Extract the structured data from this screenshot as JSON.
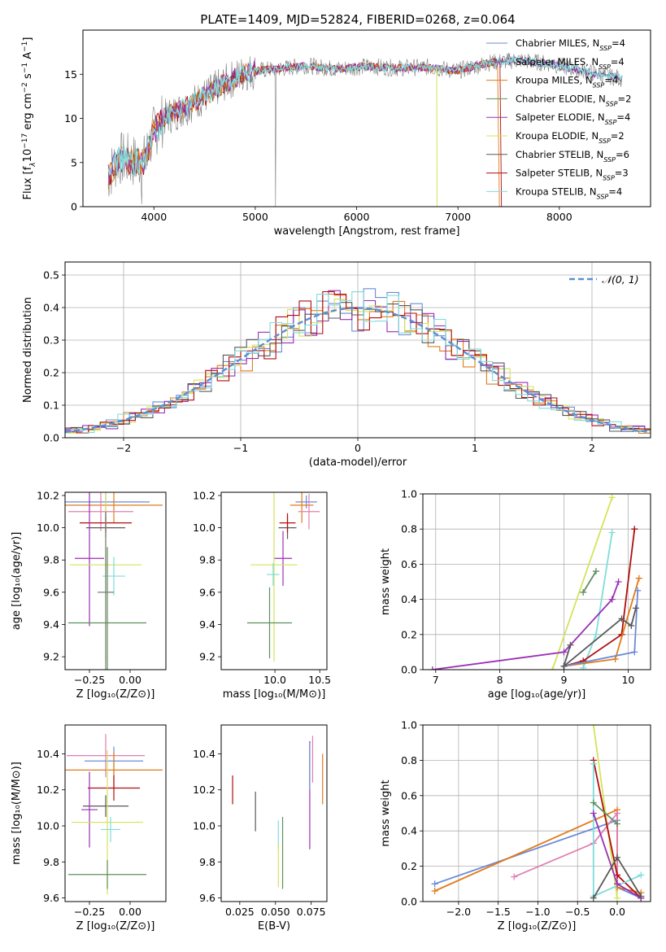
{
  "figure_title": "PLATE=1409, MJD=52824, FIBERID=0268, z=0.064",
  "series_colors": {
    "chab_miles": "#6b8ad6",
    "salp_miles": "#7b7b7b",
    "krou_miles": "#e07b1a",
    "chab_elodie": "#5f8f5f",
    "salp_elodie": "#9a2fb5",
    "krou_elodie": "#d5e35a",
    "chab_stelib": "#595959",
    "salp_stelib": "#b00d0d",
    "krou_stelib": "#7fdcdc",
    "pink": "#e07fb0"
  },
  "chart_data": [
    {
      "id": "spectrum",
      "type": "line",
      "xlabel": "wavelength [Angstrom, rest frame]",
      "ylabel_parts": [
        "Flux [f",
        "λ",
        "10",
        "−17",
        " erg cm",
        "−2",
        " s",
        "−1",
        " A",
        "−1",
        "]"
      ],
      "xlim": [
        3300,
        8900
      ],
      "ylim": [
        0,
        20
      ],
      "xticks": [
        4000,
        5000,
        6000,
        7000,
        8000
      ],
      "yticks": [
        0,
        5,
        10,
        15
      ],
      "legend_position": "upper right",
      "legend": [
        {
          "key": "chab_miles",
          "label": "Chabrier MILES, N",
          "sub": "SSP",
          "tail": "=4"
        },
        {
          "key": "salp_miles",
          "label": "Salpeter MILES, N",
          "sub": "SSP",
          "tail": "=4"
        },
        {
          "key": "krou_miles",
          "label": "Kroupa MILES, N",
          "sub": "SSP",
          "tail": "=4"
        },
        {
          "key": "chab_elodie",
          "label": "Chabrier ELODIE, N",
          "sub": "SSP",
          "tail": "=2"
        },
        {
          "key": "salp_elodie",
          "label": "Salpeter ELODIE, N",
          "sub": "SSP",
          "tail": "=4"
        },
        {
          "key": "krou_elodie",
          "label": "Kroupa ELODIE, N",
          "sub": "SSP",
          "tail": "=2"
        },
        {
          "key": "chab_stelib",
          "label": "Chabrier STELIB, N",
          "sub": "SSP",
          "tail": "=6"
        },
        {
          "key": "salp_stelib",
          "label": "Salpeter STELIB, N",
          "sub": "SSP",
          "tail": "=3"
        },
        {
          "key": "krou_stelib",
          "label": "Kroupa STELIB, N",
          "sub": "SSP",
          "tail": "=4"
        }
      ],
      "continuum": [
        [
          3550,
          3.5
        ],
        [
          3650,
          5.5
        ],
        [
          3760,
          5.2
        ],
        [
          3900,
          5.0
        ],
        [
          4000,
          8.5
        ],
        [
          4100,
          10.0
        ],
        [
          4300,
          11.2
        ],
        [
          4500,
          12.5
        ],
        [
          4700,
          14.0
        ],
        [
          4900,
          15.2
        ],
        [
          5100,
          15.5
        ],
        [
          5300,
          15.7
        ],
        [
          5500,
          16.0
        ],
        [
          5800,
          15.6
        ],
        [
          6100,
          15.9
        ],
        [
          6400,
          15.7
        ],
        [
          6700,
          15.8
        ],
        [
          7000,
          15.4
        ],
        [
          7300,
          16.3
        ],
        [
          7600,
          16.6
        ],
        [
          7900,
          16.2
        ],
        [
          8300,
          15.2
        ],
        [
          8620,
          14.5
        ]
      ],
      "cutoffs": [
        {
          "key": "krou_elodie",
          "x": 6790,
          "lo": 6700
        },
        {
          "key": "krou_miles",
          "x": 7400,
          "lo": 7300
        },
        {
          "key": "salp_stelib",
          "x": 7420,
          "lo": 7300
        }
      ]
    },
    {
      "id": "residuals",
      "type": "histogram",
      "xlabel": "(data-model)/error",
      "ylabel": "Normed distribution",
      "xlim": [
        -2.5,
        2.5
      ],
      "ylim": [
        0,
        0.54
      ],
      "xticks": [
        -2,
        -1,
        0,
        1,
        2
      ],
      "yticks": [
        0.0,
        0.1,
        0.2,
        0.3,
        0.4,
        0.5
      ],
      "bin_width": 0.1,
      "legend": [
        {
          "label": "𝒩(0, 1)",
          "style": "dashed",
          "color": "#5b8ed6"
        }
      ],
      "series": [
        {
          "key": "chab_miles",
          "offset": 0.0,
          "seed": 3
        },
        {
          "key": "krou_miles",
          "offset": 0.05,
          "seed": 11
        },
        {
          "key": "salp_elodie",
          "offset": 0.0,
          "seed": 29
        },
        {
          "key": "krou_elodie",
          "offset": 0.05,
          "seed": 41
        },
        {
          "key": "chab_stelib",
          "offset": 0.0,
          "seed": 53
        },
        {
          "key": "salp_stelib",
          "offset": 0.05,
          "seed": 67
        },
        {
          "key": "krou_stelib",
          "offset": 0.0,
          "seed": 79
        }
      ]
    },
    {
      "id": "z_age",
      "type": "errorbar",
      "xlabel": "Z [log₁₀(Z/Z⊙)]",
      "ylabel": "age  [log₁₀(age/yr)]",
      "xlim": [
        -0.4,
        0.22
      ],
      "ylim": [
        9.12,
        10.22
      ],
      "xticks": [
        -0.25,
        0.0
      ],
      "xticklabels": [
        "−0.25",
        "0.00"
      ],
      "yticks": [
        9.2,
        9.4,
        9.6,
        9.8,
        10.0,
        10.2
      ],
      "points": [
        {
          "key": "chab_miles",
          "x": -0.15,
          "y": 10.16,
          "xerr": 0.27,
          "yerr": 0.11
        },
        {
          "key": "krou_miles",
          "x": -0.1,
          "y": 10.14,
          "xerr": 0.3,
          "yerr": 0.11
        },
        {
          "key": "pink",
          "x": -0.18,
          "y": 10.1,
          "xerr": 0.2,
          "yerr": 0.12
        },
        {
          "key": "chab_stelib",
          "x": -0.15,
          "y": 10.0,
          "xerr": 0.12,
          "yerr": 0.06
        },
        {
          "key": "salp_stelib",
          "x": -0.15,
          "y": 10.03,
          "xerr": 0.16,
          "yerr": 0.06
        },
        {
          "key": "salp_elodie",
          "x": -0.25,
          "y": 9.81,
          "xerr": 0.09,
          "yerr": 0.42
        },
        {
          "key": "krou_elodie",
          "x": -0.15,
          "y": 9.77,
          "xerr": 0.22,
          "yerr": 0.6
        },
        {
          "key": "krou_stelib",
          "x": -0.1,
          "y": 9.7,
          "xerr": 0.07,
          "yerr": 0.12
        },
        {
          "key": "chab_elodie",
          "x": -0.14,
          "y": 9.41,
          "xerr": 0.24,
          "yerr": 0.47
        },
        {
          "key": "salp_miles",
          "x": -0.15,
          "y": 9.6,
          "xerr": 0.05,
          "yerr": 0.5
        }
      ]
    },
    {
      "id": "mass_age",
      "type": "errorbar",
      "xlabel": "mass [log₁₀(M/M⊙)]",
      "ylabel": "",
      "xlim": [
        9.4,
        10.58
      ],
      "ylim": [
        9.12,
        10.22
      ],
      "xticks": [
        10.0,
        10.5
      ],
      "xticklabels": [
        "10.0",
        "10.5"
      ],
      "yticks": [
        9.2,
        9.4,
        9.6,
        9.8,
        10.0,
        10.2
      ],
      "points": [
        {
          "key": "chab_miles",
          "x": 10.35,
          "y": 10.16,
          "xerr": 0.12,
          "yerr": 0.04
        },
        {
          "key": "krou_miles",
          "x": 10.3,
          "y": 10.14,
          "xerr": 0.13,
          "yerr": 0.11
        },
        {
          "key": "pink",
          "x": 10.38,
          "y": 10.1,
          "xerr": 0.12,
          "yerr": 0.11
        },
        {
          "key": "chab_stelib",
          "x": 10.14,
          "y": 10.0,
          "xerr": 0.1,
          "yerr": 0.07
        },
        {
          "key": "salp_stelib",
          "x": 10.14,
          "y": 10.03,
          "xerr": 0.09,
          "yerr": 0.06
        },
        {
          "key": "salp_elodie",
          "x": 10.09,
          "y": 9.81,
          "xerr": 0.1,
          "yerr": 0.17
        },
        {
          "key": "krou_elodie",
          "x": 9.99,
          "y": 9.77,
          "xerr": 0.26,
          "yerr": 0.6
        },
        {
          "key": "krou_stelib",
          "x": 9.98,
          "y": 9.71,
          "xerr": 0.07,
          "yerr": 0.07
        },
        {
          "key": "chab_elodie",
          "x": 9.94,
          "y": 9.41,
          "xerr": 0.25,
          "yerr": 0.22
        }
      ]
    },
    {
      "id": "age_weight",
      "type": "line",
      "xlabel": "age  [log₁₀(age/yr)]",
      "ylabel": "mass weight",
      "xlim": [
        6.8,
        10.35
      ],
      "ylim": [
        0,
        1.0
      ],
      "xticks": [
        7,
        8,
        9,
        10
      ],
      "yticks": [
        0.0,
        0.2,
        0.4,
        0.6,
        0.8,
        1.0
      ],
      "series": [
        {
          "key": "krou_elodie",
          "points": [
            [
              8.82,
              0.0
            ],
            [
              9.75,
              0.98
            ]
          ]
        },
        {
          "key": "krou_stelib",
          "points": [
            [
              9.3,
              0.01
            ],
            [
              9.5,
              0.2
            ],
            [
              9.75,
              0.78
            ]
          ]
        },
        {
          "key": "salp_stelib",
          "points": [
            [
              9.0,
              0.02
            ],
            [
              9.3,
              0.05
            ],
            [
              9.9,
              0.2
            ],
            [
              10.1,
              0.8
            ]
          ]
        },
        {
          "key": "chab_elodie",
          "points": [
            [
              9.3,
              0.44
            ],
            [
              9.5,
              0.56
            ]
          ]
        },
        {
          "key": "salp_elodie",
          "points": [
            [
              6.95,
              0.0
            ],
            [
              9.0,
              0.1
            ],
            [
              9.75,
              0.4
            ],
            [
              9.85,
              0.5
            ]
          ]
        },
        {
          "key": "krou_miles",
          "points": [
            [
              9.0,
              0.02
            ],
            [
              9.8,
              0.06
            ],
            [
              10.17,
              0.52
            ]
          ]
        },
        {
          "key": "chab_miles",
          "points": [
            [
              9.0,
              0.02
            ],
            [
              10.1,
              0.1
            ],
            [
              10.15,
              0.45
            ]
          ]
        },
        {
          "key": "chab_stelib",
          "points": [
            [
              9.1,
              0.14
            ],
            [
              9.0,
              0.02
            ],
            [
              9.9,
              0.29
            ],
            [
              10.05,
              0.25
            ],
            [
              10.12,
              0.35
            ]
          ]
        }
      ]
    },
    {
      "id": "z_mass",
      "type": "errorbar",
      "xlabel": "Z [log₁₀(Z/Z⊙)]",
      "ylabel": "mass [log₁₀(M/M⊙)]",
      "xlim": [
        -0.4,
        0.22
      ],
      "ylim": [
        9.58,
        10.56
      ],
      "xticks": [
        -0.25,
        0.0
      ],
      "xticklabels": [
        "−0.25",
        "0.00"
      ],
      "yticks": [
        9.6,
        9.8,
        10.0,
        10.2,
        10.4
      ],
      "points": [
        {
          "key": "pink",
          "x": -0.15,
          "y": 10.39,
          "xerr": 0.24,
          "yerr": 0.12
        },
        {
          "key": "chab_miles",
          "x": -0.1,
          "y": 10.36,
          "xerr": 0.18,
          "yerr": 0.08
        },
        {
          "key": "krou_miles",
          "x": -0.1,
          "y": 10.31,
          "xerr": 0.3,
          "yerr": 0.1
        },
        {
          "key": "salp_stelib",
          "x": -0.1,
          "y": 10.21,
          "xerr": 0.16,
          "yerr": 0.07
        },
        {
          "key": "chab_stelib",
          "x": -0.15,
          "y": 10.11,
          "xerr": 0.14,
          "yerr": 0.06
        },
        {
          "key": "salp_elodie",
          "x": -0.25,
          "y": 10.09,
          "xerr": 0.05,
          "yerr": 0.21
        },
        {
          "key": "krou_elodie",
          "x": -0.14,
          "y": 10.02,
          "xerr": 0.22,
          "yerr": 0.4
        },
        {
          "key": "krou_stelib",
          "x": -0.12,
          "y": 9.98,
          "xerr": 0.06,
          "yerr": 0.07
        },
        {
          "key": "chab_elodie",
          "x": -0.14,
          "y": 9.73,
          "xerr": 0.24,
          "yerr": 0.08
        }
      ]
    },
    {
      "id": "ebv_mass",
      "type": "errorbar",
      "xlabel": "E(B-V)",
      "ylabel": "",
      "xlim": [
        0.012,
        0.086
      ],
      "ylim": [
        9.58,
        10.56
      ],
      "xticks": [
        0.025,
        0.05,
        0.075
      ],
      "xticklabels": [
        "0.025",
        "0.050",
        "0.075"
      ],
      "yticks": [
        9.6,
        9.8,
        10.0,
        10.2,
        10.4
      ],
      "points": [
        {
          "key": "salp_stelib",
          "x": 0.02,
          "y": 10.2,
          "xerr": 0.0,
          "yerr": 0.08
        },
        {
          "key": "chab_stelib",
          "x": 0.036,
          "y": 10.08,
          "xerr": 0.0,
          "yerr": 0.11
        },
        {
          "key": "chab_elodie",
          "x": 0.055,
          "y": 9.85,
          "xerr": 0.0,
          "yerr": 0.2
        },
        {
          "key": "krou_stelib",
          "x": 0.052,
          "y": 9.95,
          "xerr": 0.0,
          "yerr": 0.08
        },
        {
          "key": "krou_elodie",
          "x": 0.052,
          "y": 9.78,
          "xerr": 0.0,
          "yerr": 0.12
        },
        {
          "key": "salp_elodie",
          "x": 0.074,
          "y": 10.17,
          "xerr": 0.0,
          "yerr": 0.3
        },
        {
          "key": "chab_miles",
          "x": 0.074,
          "y": 10.33,
          "xerr": 0.0,
          "yerr": 0.13
        },
        {
          "key": "pink",
          "x": 0.076,
          "y": 10.37,
          "xerr": 0.0,
          "yerr": 0.13
        },
        {
          "key": "krou_miles",
          "x": 0.083,
          "y": 10.26,
          "xerr": 0.0,
          "yerr": 0.14
        }
      ]
    },
    {
      "id": "z_weight",
      "type": "line",
      "xlabel": "Z [log₁₀(Z/Z⊙)]",
      "ylabel": "mass weight",
      "xlim": [
        -2.45,
        0.42
      ],
      "ylim": [
        0,
        1.0
      ],
      "xticks": [
        -2.0,
        -1.5,
        -1.0,
        -0.5,
        0.0
      ],
      "xticklabels": [
        "−2.0",
        "−1.5",
        "−1.0",
        "−0.5",
        "0.0"
      ],
      "yticks": [
        0.0,
        0.2,
        0.4,
        0.6,
        0.8,
        1.0
      ],
      "series": [
        {
          "key": "chab_miles",
          "points": [
            [
              -2.3,
              0.1
            ],
            [
              0.0,
              0.46
            ],
            [
              0.0,
              0.08
            ],
            [
              0.3,
              0.02
            ]
          ]
        },
        {
          "key": "krou_miles",
          "points": [
            [
              -2.3,
              0.06
            ],
            [
              0.0,
              0.52
            ],
            [
              0.0,
              0.08
            ],
            [
              0.3,
              0.05
            ]
          ]
        },
        {
          "key": "pink",
          "points": [
            [
              -1.3,
              0.14
            ],
            [
              -0.3,
              0.33
            ],
            [
              0.0,
              0.5
            ],
            [
              0.0,
              0.1
            ]
          ]
        },
        {
          "key": "krou_elodie",
          "points": [
            [
              -0.3,
              1.0
            ],
            [
              0.0,
              0.02
            ]
          ]
        },
        {
          "key": "salp_stelib",
          "points": [
            [
              -0.3,
              0.8
            ],
            [
              0.0,
              0.15
            ],
            [
              0.3,
              0.02
            ]
          ]
        },
        {
          "key": "krou_stelib",
          "points": [
            [
              -0.3,
              0.78
            ],
            [
              -0.3,
              0.03
            ],
            [
              0.3,
              0.15
            ]
          ]
        },
        {
          "key": "salp_elodie",
          "points": [
            [
              -0.3,
              0.5
            ],
            [
              0.0,
              0.1
            ],
            [
              0.3,
              0.02
            ]
          ]
        },
        {
          "key": "chab_elodie",
          "points": [
            [
              -0.3,
              0.56
            ],
            [
              0.0,
              0.44
            ]
          ]
        },
        {
          "key": "chab_stelib",
          "points": [
            [
              -0.3,
              0.02
            ],
            [
              0.0,
              0.25
            ],
            [
              0.3,
              0.03
            ]
          ]
        }
      ]
    }
  ]
}
